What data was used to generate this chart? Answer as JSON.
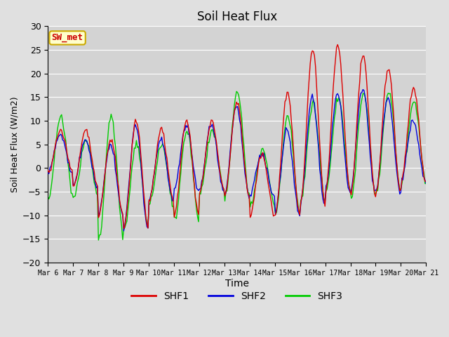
{
  "title": "Soil Heat Flux",
  "xlabel": "Time",
  "ylabel": "Soil Heat Flux (W/m2)",
  "ylim": [
    -20,
    30
  ],
  "fig_bg": "#e0e0e0",
  "plot_bg": "#d3d3d3",
  "grid_color": "#bbbbbb",
  "colors": {
    "SHF1": "#dd0000",
    "SHF2": "#0000dd",
    "SHF3": "#00cc00"
  },
  "x_tick_labels": [
    "Mar 6",
    "Mar 7",
    "Mar 8",
    "Mar 9",
    "Mar 10",
    "Mar 11",
    "Mar 12",
    "Mar 13",
    "Mar 14",
    "Mar 15",
    "Mar 16",
    "Mar 17",
    "Mar 18",
    "Mar 19",
    "Mar 20",
    "Mar 21"
  ],
  "yticks": [
    -20,
    -15,
    -10,
    -5,
    0,
    5,
    10,
    15,
    20,
    25,
    30
  ],
  "n_days": 15,
  "n_pts_per_day": 24,
  "legend_text": "SW_met",
  "legend_bg": "#ffffcc",
  "legend_border": "#ccaa00"
}
